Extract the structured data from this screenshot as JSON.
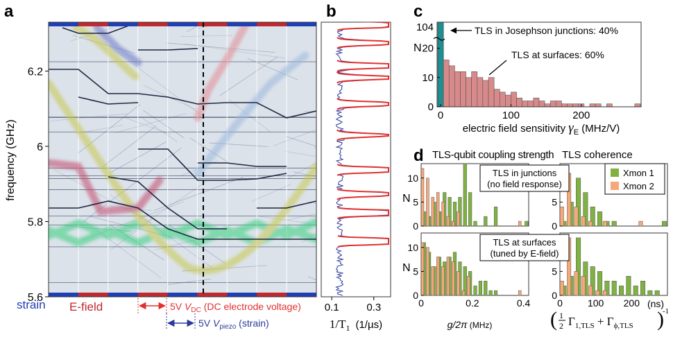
{
  "panels": {
    "a": "a",
    "b": "b",
    "c": "c",
    "d": "d"
  },
  "colors": {
    "strain": "#1f3fb5",
    "efield": "#c0292f",
    "red": "#e03030",
    "blue": "#2b3a9c",
    "teal": "#1e8f92",
    "salmon": "#d88a8a",
    "green": "#7fb241",
    "orange": "#f6a878"
  },
  "chart_data": [
    {
      "panel": "a",
      "type": "heatmap",
      "ylabel": "frequency (GHz)",
      "ylim": [
        5.6,
        6.33
      ],
      "yticks": [
        5.6,
        5.8,
        6,
        6.2
      ],
      "ytick_labels": [
        "5.6",
        "5.8",
        "6",
        "6.2"
      ],
      "legend": {
        "strain": "strain",
        "efield": "E-field"
      },
      "annotations": {
        "vdc_prefix": "5V ",
        "vdc_sym": "V",
        "vdc_sub": "DC",
        "vdc_desc": " (DC electrode voltage)",
        "vp_prefix": "5V ",
        "vp_sym": "V",
        "vp_sub": "piezo",
        "vp_desc": " (strain)"
      }
    },
    {
      "panel": "b",
      "type": "line",
      "xlabel_sym": "1/T",
      "xlabel_sub": "1",
      "xlabel_unit": "(1/µs)",
      "xticks": [
        0.1,
        0.3
      ],
      "xtick_labels": [
        "0.1",
        "0.3"
      ],
      "xlim": [
        0.05,
        0.38
      ]
    },
    {
      "panel": "c",
      "type": "bar",
      "xlabel": "electric field sensitivity ",
      "xlabel_sym": "γ",
      "xlabel_sub": "E",
      "xlabel_unit": " (MHz/V)",
      "ylabel": "N",
      "xlim": [
        -5,
        285
      ],
      "ylim": [
        0,
        27
      ],
      "yticks": [
        0,
        10,
        20
      ],
      "ytick_labels": [
        "0",
        "10",
        "20"
      ],
      "ybreak_value": 104,
      "ybreak_label": "104",
      "xticks": [
        0,
        100,
        200
      ],
      "xtick_labels": [
        "0",
        "100",
        "200"
      ],
      "bin_width": 8,
      "junction_bar": {
        "x": 0,
        "value": 104
      },
      "x": [
        8,
        16,
        24,
        32,
        40,
        48,
        56,
        64,
        72,
        80,
        88,
        96,
        104,
        112,
        120,
        128,
        136,
        144,
        152,
        160,
        168,
        176,
        184,
        192,
        200,
        208,
        216,
        224,
        232,
        240,
        248,
        256,
        264,
        272,
        280
      ],
      "values": [
        16,
        14,
        12,
        12,
        10,
        12,
        10,
        9,
        10,
        6,
        5,
        4,
        5,
        3,
        2,
        2,
        3,
        2,
        1,
        2,
        2,
        1,
        1,
        1,
        1,
        0,
        1,
        1,
        0,
        1,
        0,
        0,
        0,
        0,
        1
      ],
      "annotations": {
        "junction": "TLS in Josephson junctions: 40%",
        "surface": "TLS at surfaces: 60%"
      }
    },
    {
      "panel": "d",
      "type": "bar",
      "titles": {
        "left": "TLS-qubit coupling strength",
        "right": "TLS coherence"
      },
      "ylabel": "N",
      "series": [
        {
          "name": "Xmon 1"
        },
        {
          "name": "Xmon 2"
        }
      ],
      "left_xlabel": "g/2π",
      "left_xunit": " (MHz)",
      "left_xticks": [
        0,
        0.2,
        0.4
      ],
      "left_xtick_labels": [
        "0",
        "0.2",
        "0.4"
      ],
      "left_xlim": [
        0,
        0.42
      ],
      "right_xunit": "(ns)",
      "right_xticks": [
        0,
        100,
        200
      ],
      "right_xtick_labels": [
        "0",
        "100",
        "200"
      ],
      "right_xlim": [
        0,
        300
      ],
      "ylim": [
        0,
        13
      ],
      "yticks": [
        0,
        5,
        10
      ],
      "ytick_labels": [
        "0",
        "5",
        "10"
      ],
      "right_xlabel_parts": {
        "half": "1",
        "two": "2",
        "gamma": "Γ",
        "sub1": "1,TLS",
        "plus": " + ",
        "gamma2": "Γ",
        "sub2": "ϕ,TLS",
        "exp": "-1"
      },
      "rows": [
        {
          "label": "TLS in junctions\n(no field response)",
          "left": {
            "x": [
              0.01,
              0.03,
              0.05,
              0.07,
              0.09,
              0.11,
              0.13,
              0.15,
              0.17,
              0.19,
              0.21,
              0.23,
              0.25,
              0.27,
              0.29,
              0.31,
              0.33,
              0.35,
              0.37,
              0.39,
              0.41
            ],
            "xmon1": [
              3,
              2,
              5,
              3,
              7,
              6,
              5,
              6,
              13,
              7,
              1,
              0,
              2,
              0,
              4,
              0,
              0,
              0,
              0,
              0,
              1
            ],
            "xmon2": [
              12,
              10,
              6,
              7,
              5,
              2,
              1,
              3,
              0,
              0,
              0,
              0,
              0,
              0,
              0,
              0,
              0,
              0,
              0,
              1,
              0
            ]
          },
          "right": {
            "x": [
              10,
              30,
              50,
              70,
              90,
              110,
              130,
              150,
              170,
              190,
              210,
              230,
              250,
              270,
              290
            ],
            "xmon1": [
              1,
              5,
              10,
              7,
              4,
              3,
              1,
              1,
              0,
              0,
              0,
              0,
              0,
              0,
              1
            ],
            "xmon2": [
              4,
              11,
              4,
              2,
              1,
              0,
              1,
              0,
              0,
              0,
              0,
              1,
              0,
              0,
              0
            ]
          }
        },
        {
          "label": "TLS at surfaces\n(tuned by E-field)",
          "left": {
            "x": [
              0.01,
              0.03,
              0.05,
              0.07,
              0.09,
              0.11,
              0.13,
              0.15,
              0.17,
              0.19,
              0.21,
              0.23,
              0.25,
              0.27,
              0.29,
              0.31,
              0.33,
              0.35,
              0.37,
              0.39,
              0.41
            ],
            "xmon1": [
              11,
              9,
              6,
              8,
              7,
              8,
              9,
              7,
              6,
              5,
              2,
              3,
              3,
              1,
              1,
              0,
              0,
              0,
              0,
              0,
              0
            ],
            "xmon2": [
              11,
              10,
              6,
              8,
              6,
              8,
              7,
              5,
              1,
              4,
              0,
              0,
              0,
              0,
              0,
              0,
              0,
              0,
              0,
              1,
              0
            ]
          },
          "right": {
            "x": [
              10,
              30,
              50,
              70,
              90,
              110,
              130,
              150,
              170,
              190,
              210,
              230,
              250,
              270,
              290
            ],
            "xmon1": [
              2,
              4,
              12,
              7,
              6,
              5,
              3,
              3,
              2,
              4,
              2,
              3,
              1,
              1,
              0
            ],
            "xmon2": [
              3,
              12,
              5,
              4,
              2,
              1,
              1,
              0,
              0,
              0,
              0,
              0,
              0,
              0,
              0
            ]
          }
        }
      ]
    }
  ]
}
